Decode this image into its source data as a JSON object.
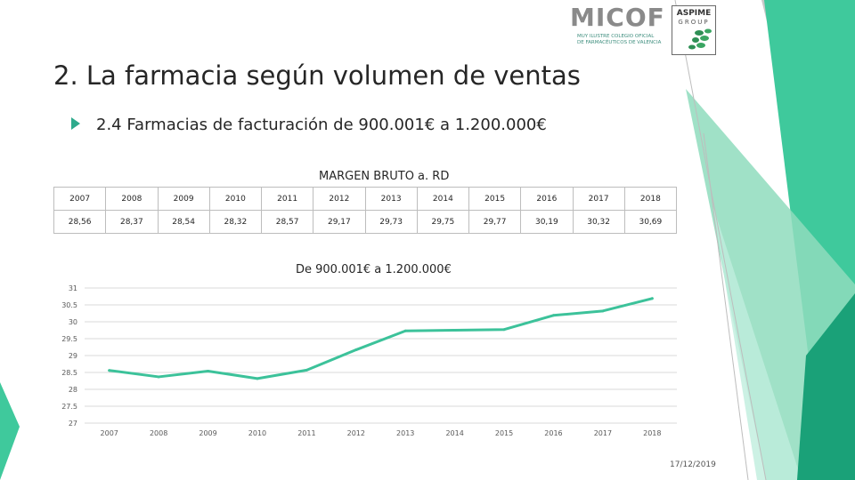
{
  "header": {
    "micof_logo": "MICOF",
    "micof_subtitle_line1": "MUY ILUSTRE COLEGIO OFICIAL",
    "micof_subtitle_line2": "DE FARMACÉUTICOS DE VALENCIA",
    "aspime_logo": "ASPIME",
    "aspime_group": "GROUP"
  },
  "title": "2. La farmacia según volumen de ventas",
  "subtitle": "2.4 Farmacias de facturación de 900.001€ a 1.200.000€",
  "table": {
    "caption": "MARGEN BRUTO a. RD",
    "years": [
      "2007",
      "2008",
      "2009",
      "2010",
      "2011",
      "2012",
      "2013",
      "2014",
      "2015",
      "2016",
      "2017",
      "2018"
    ],
    "values": [
      "28,56",
      "28,37",
      "28,54",
      "28,32",
      "28,57",
      "29,17",
      "29,73",
      "29,75",
      "29,77",
      "30,19",
      "30,32",
      "30,69"
    ]
  },
  "chart_data": {
    "type": "line",
    "title": "De 900.001€ a 1.200.000€",
    "categories": [
      "2007",
      "2008",
      "2009",
      "2010",
      "2011",
      "2012",
      "2013",
      "2014",
      "2015",
      "2016",
      "2017",
      "2018"
    ],
    "series": [
      {
        "name": "Margen bruto a. RD",
        "values": [
          28.56,
          28.37,
          28.54,
          28.32,
          28.57,
          29.17,
          29.73,
          29.75,
          29.77,
          30.19,
          30.32,
          30.69
        ]
      }
    ],
    "yticks": [
      "31",
      "30.5",
      "30",
      "29.5",
      "29",
      "28.5",
      "28",
      "27.5",
      "27"
    ],
    "ylim": [
      27,
      31
    ],
    "xlabel": "",
    "ylabel": "",
    "grid": true,
    "line_color": "#3cc29a"
  },
  "footer": {
    "date": "17/12/2019"
  },
  "colors": {
    "accent_green": "#3cc29a",
    "dark_green": "#1f9e78",
    "light_green": "#a8e6cf",
    "grey_triangle": "#c4c4c4"
  }
}
